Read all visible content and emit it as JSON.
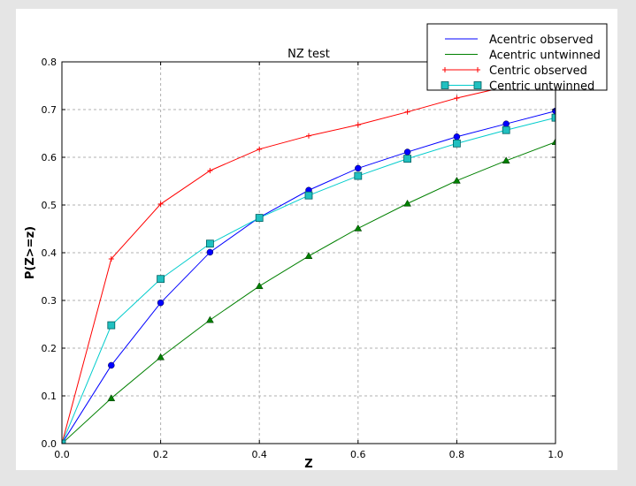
{
  "chart_data": {
    "type": "line",
    "title": "NZ test",
    "xlabel": "Z",
    "ylabel": "P(Z>=z)",
    "xlim": [
      0.0,
      1.0
    ],
    "ylim": [
      0.0,
      0.8
    ],
    "xticks": [
      "0.0",
      "0.2",
      "0.4",
      "0.6",
      "0.8",
      "1.0"
    ],
    "yticks": [
      "0.0",
      "0.1",
      "0.2",
      "0.3",
      "0.4",
      "0.5",
      "0.6",
      "0.7",
      "0.8"
    ],
    "grid": true,
    "legend_position": "top-right",
    "x": [
      0.0,
      0.1,
      0.2,
      0.3,
      0.4,
      0.5,
      0.6,
      0.7,
      0.8,
      0.9,
      1.0
    ],
    "series": [
      {
        "name": "Acentric observed",
        "color": "#0000ff",
        "marker": "circle",
        "values": [
          0.0,
          0.164,
          0.295,
          0.401,
          0.474,
          0.531,
          0.577,
          0.611,
          0.643,
          0.67,
          0.697
        ]
      },
      {
        "name": "Acentric untwinned",
        "color": "#008000",
        "marker": "triangle",
        "values": [
          0.0,
          0.095,
          0.181,
          0.259,
          0.33,
          0.393,
          0.451,
          0.503,
          0.551,
          0.593,
          0.632
        ]
      },
      {
        "name": "Centric observed",
        "color": "#ff0000",
        "marker": "plus",
        "values": [
          0.0,
          0.387,
          0.502,
          0.572,
          0.617,
          0.645,
          0.668,
          0.695,
          0.724,
          0.748,
          0.77
        ]
      },
      {
        "name": "Centric untwinned",
        "color": "#00cccc",
        "marker": "square",
        "values": [
          0.0,
          0.248,
          0.345,
          0.419,
          0.473,
          0.52,
          0.561,
          0.597,
          0.629,
          0.657,
          0.683
        ]
      }
    ]
  }
}
